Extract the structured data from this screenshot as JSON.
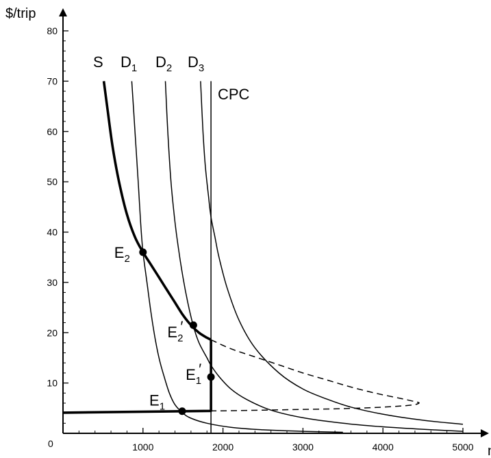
{
  "chart_data": {
    "type": "line",
    "ylabel": "$/trip",
    "xlabel": "n",
    "xlim": [
      0,
      5000
    ],
    "ylim": [
      0,
      80
    ],
    "xticks": [
      {
        "value": 0,
        "label": "0"
      },
      {
        "value": 1000,
        "label": "1000"
      },
      {
        "value": 2000,
        "label": "2000"
      },
      {
        "value": 3000,
        "label": "3000"
      },
      {
        "value": 4000,
        "label": "4000"
      },
      {
        "value": 5000,
        "label": "5000"
      }
    ],
    "yticks": [
      {
        "value": 10,
        "label": "10"
      },
      {
        "value": 20,
        "label": "20"
      },
      {
        "value": 30,
        "label": "30"
      },
      {
        "value": 40,
        "label": "40"
      },
      {
        "value": 50,
        "label": "50"
      },
      {
        "value": 60,
        "label": "60"
      },
      {
        "value": 70,
        "label": "70"
      },
      {
        "value": 80,
        "label": "80"
      }
    ],
    "series": [
      {
        "name": "S",
        "style": "thick",
        "points": [
          [
            510,
            70
          ],
          [
            560,
            64
          ],
          [
            620,
            57
          ],
          [
            700,
            50
          ],
          [
            800,
            43.5
          ],
          [
            900,
            39
          ],
          [
            1000,
            36
          ],
          [
            1100,
            33.5
          ],
          [
            1200,
            31
          ],
          [
            1300,
            28.5
          ],
          [
            1400,
            26
          ],
          [
            1500,
            23.5
          ],
          [
            1600,
            21.5
          ],
          [
            1700,
            20
          ],
          [
            1800,
            19
          ],
          [
            1850,
            18.6
          ]
        ]
      },
      {
        "name": "S (backward-bending)",
        "style": "dashed",
        "points": [
          [
            1850,
            18.6
          ],
          [
            2100,
            16.8
          ],
          [
            2400,
            15.2
          ],
          [
            2700,
            13.6
          ],
          [
            3000,
            12
          ],
          [
            3300,
            10.6
          ],
          [
            3600,
            9.2
          ],
          [
            3900,
            8
          ],
          [
            4200,
            7
          ],
          [
            4400,
            6.3
          ],
          [
            4450,
            6
          ],
          [
            4350,
            5.6
          ],
          [
            4000,
            5.2
          ],
          [
            3500,
            4.9
          ],
          [
            3000,
            4.75
          ],
          [
            2500,
            4.6
          ],
          [
            2100,
            4.5
          ],
          [
            1850,
            4.45
          ]
        ]
      },
      {
        "name": "D1",
        "points": [
          [
            860,
            70
          ],
          [
            900,
            60
          ],
          [
            940,
            50
          ],
          [
            970,
            42
          ],
          [
            1000,
            36
          ],
          [
            1050,
            30
          ],
          [
            1100,
            24
          ],
          [
            1150,
            19
          ],
          [
            1200,
            15
          ],
          [
            1260,
            11.5
          ],
          [
            1330,
            8
          ],
          [
            1400,
            5.7
          ],
          [
            1500,
            4
          ],
          [
            1600,
            3
          ],
          [
            1800,
            2
          ],
          [
            2100,
            1.2
          ],
          [
            2500,
            0.7
          ],
          [
            3000,
            0.4
          ],
          [
            3500,
            0.2
          ]
        ]
      },
      {
        "name": "D2",
        "points": [
          [
            1280,
            70
          ],
          [
            1310,
            60
          ],
          [
            1350,
            50
          ],
          [
            1400,
            42
          ],
          [
            1450,
            36
          ],
          [
            1500,
            31
          ],
          [
            1560,
            26
          ],
          [
            1630,
            21.3
          ],
          [
            1700,
            18
          ],
          [
            1800,
            15
          ],
          [
            1850,
            13.5
          ],
          [
            1950,
            11.3
          ],
          [
            2100,
            8.8
          ],
          [
            2300,
            6.7
          ],
          [
            2600,
            4.6
          ],
          [
            3000,
            3.1
          ],
          [
            3500,
            2
          ],
          [
            4000,
            1.3
          ],
          [
            4500,
            0.8
          ],
          [
            5000,
            0.4
          ]
        ]
      },
      {
        "name": "D3",
        "points": [
          [
            1720,
            70
          ],
          [
            1750,
            60
          ],
          [
            1780,
            53
          ],
          [
            1820,
            47
          ],
          [
            1850,
            43
          ],
          [
            1900,
            39
          ],
          [
            1950,
            35
          ],
          [
            2050,
            29
          ],
          [
            2200,
            22.5
          ],
          [
            2400,
            17
          ],
          [
            2700,
            12
          ],
          [
            3000,
            8.8
          ],
          [
            3300,
            6.8
          ],
          [
            3600,
            5.2
          ],
          [
            4000,
            3.8
          ],
          [
            4500,
            2.6
          ],
          [
            5000,
            1.8
          ]
        ]
      },
      {
        "name": "CPC",
        "style": "thin",
        "points": [
          [
            1850,
            70
          ],
          [
            1850,
            0
          ]
        ]
      },
      {
        "name": "Supply floor",
        "style": "thick",
        "points": [
          [
            0,
            4.1
          ],
          [
            1850,
            4.45
          ],
          [
            1850,
            18.6
          ]
        ]
      }
    ],
    "equilibria": [
      {
        "label": "E",
        "sub": "1",
        "prime": false,
        "x": 1490,
        "y": 4.4
      },
      {
        "label": "E",
        "sub": "2",
        "prime": false,
        "x": 1000,
        "y": 36
      },
      {
        "label": "E",
        "sub": "1",
        "prime": true,
        "x": 1850,
        "y": 11.2
      },
      {
        "label": "E",
        "sub": "2",
        "prime": true,
        "x": 1630,
        "y": 21.5
      }
    ],
    "curve_labels": [
      {
        "text": "S",
        "sub": ""
      },
      {
        "text": "D",
        "sub": "1"
      },
      {
        "text": "D",
        "sub": "2"
      },
      {
        "text": "D",
        "sub": "3"
      },
      {
        "text": "CPC",
        "sub": ""
      }
    ],
    "grid": false,
    "colors": {
      "line": "#000000",
      "background": "#ffffff"
    }
  }
}
